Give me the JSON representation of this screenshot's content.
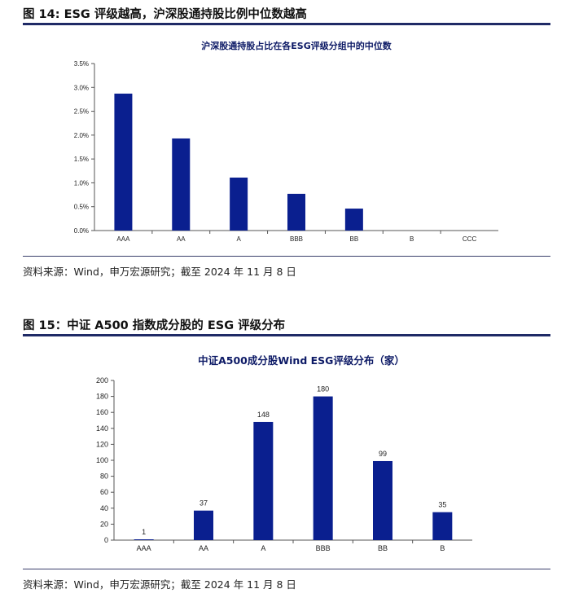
{
  "figure14": {
    "title": "图 14:  ESG 评级越高，沪深股通持股比例中位数越高",
    "source": "资料来源：Wind，申万宏源研究；截至 2024 年 11 月 8 日"
  },
  "figure15": {
    "title": "图 15：中证 A500 指数成分股的 ESG 评级分布",
    "source": "资料来源：Wind，申万宏源研究；截至 2024 年 11 月 8 日"
  },
  "colors": {
    "bar": "#0a1f8f",
    "rule": "#1f2a66"
  },
  "chart_data": [
    {
      "type": "bar",
      "title": "沪深股通持股占比在各ESG评级分组中的中位数",
      "categories": [
        "AAA",
        "AA",
        "A",
        "BBB",
        "BB",
        "B",
        "CCC"
      ],
      "values": [
        2.87,
        1.93,
        1.11,
        0.77,
        0.46,
        0,
        0
      ],
      "ylim": [
        0,
        3.5
      ],
      "yticks": [
        "0.0%",
        "0.5%",
        "1.0%",
        "1.5%",
        "2.0%",
        "2.5%",
        "3.0%",
        "3.5%"
      ],
      "grid": false,
      "data_labels": false
    },
    {
      "type": "bar",
      "title": "中证A500成分股Wind ESG评级分布（家）",
      "categories": [
        "AAA",
        "AA",
        "A",
        "BBB",
        "BB",
        "B"
      ],
      "values": [
        1,
        37,
        148,
        180,
        99,
        35
      ],
      "ylim": [
        0,
        200
      ],
      "yticks": [
        "0",
        "20",
        "40",
        "60",
        "80",
        "100",
        "120",
        "140",
        "160",
        "180",
        "200"
      ],
      "grid": false,
      "data_labels": true
    }
  ]
}
